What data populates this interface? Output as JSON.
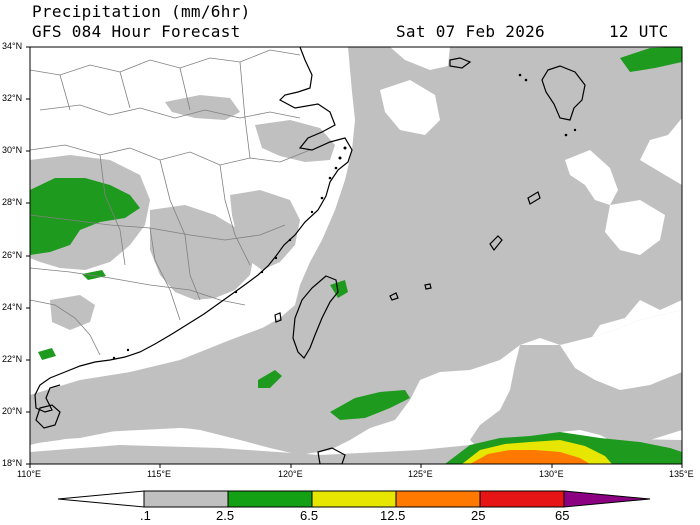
{
  "header": {
    "line1": "Precipitation (mm/6hr)",
    "line2": "GFS 084 Hour Forecast",
    "valid_date": "Sat 07 Feb 2026",
    "valid_hour": "12 UTC"
  },
  "axes": {
    "lat_labels": [
      "34°N",
      "32°N",
      "30°N",
      "28°N",
      "26°N",
      "24°N",
      "22°N",
      "20°N",
      "18°N"
    ],
    "lon_labels": [
      "110°E",
      "115°E",
      "120°E",
      "125°E",
      "130°E",
      "135°E"
    ]
  },
  "colorbar": {
    "labels": [
      ".1",
      "2.5",
      "6.5",
      "12.5",
      "25",
      "65"
    ],
    "colors": [
      "#ffffff",
      "#c0c0c0",
      "#14a014",
      "#e6e600",
      "#ff7800",
      "#e61414",
      "#8c0082"
    ]
  },
  "map_colors": {
    "land_border": "#808080",
    "coast": "#000000",
    "precip_light": "#c0c0c0",
    "precip_green": "#1e9a1e"
  }
}
